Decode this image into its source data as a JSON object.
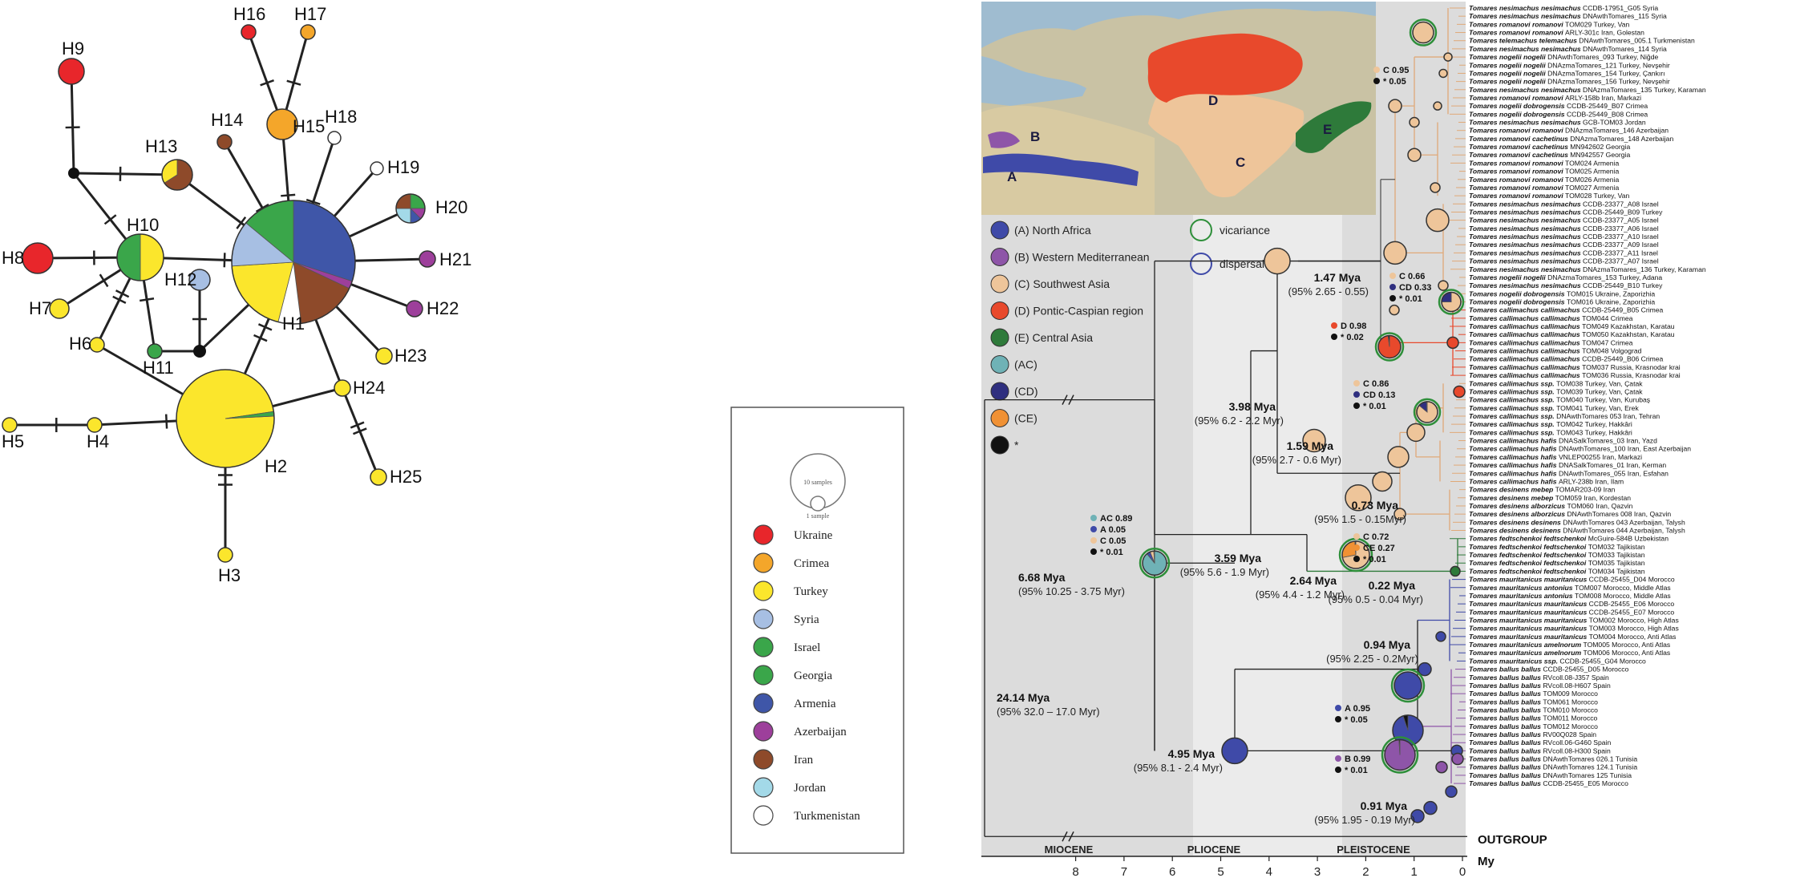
{
  "network": {
    "colors": {
      "Ukraine": "#e8262b",
      "Crimea": "#f4a62a",
      "Turkey": "#fbe62c",
      "Syria": "#a7bfe3",
      "Israel": "#3aa64a",
      "Georgia": "#3aa64a",
      "Armenia": "#3f56a8",
      "Azerbaijan": "#9d3f9b",
      "Iran": "#8e4a2a",
      "Jordan": "#a3d9e8",
      "Turkmenistan": "#ffffff"
    },
    "nodes": [
      {
        "id": "H1",
        "label": "H1",
        "slices": [
          [
            "Armenia",
            0.3
          ],
          [
            "Azerbaijan",
            0.02
          ],
          [
            "Iran",
            0.16
          ],
          [
            "Turkmenistan",
            0.06
          ],
          [
            "Turkey",
            0.2
          ],
          [
            "Syria",
            0.12
          ],
          [
            "Israel",
            0.14
          ]
        ]
      },
      {
        "id": "H2",
        "label": "H2",
        "slices": [
          [
            "Turkey",
            0.985
          ],
          [
            "Israel",
            0.015
          ]
        ]
      },
      {
        "id": "H3",
        "label": "H3",
        "slices": [
          [
            "Turkey",
            1
          ]
        ]
      },
      {
        "id": "H4",
        "label": "H4",
        "slices": [
          [
            "Turkey",
            1
          ]
        ]
      },
      {
        "id": "H5",
        "label": "H5",
        "slices": [
          [
            "Turkey",
            1
          ]
        ]
      },
      {
        "id": "H6",
        "label": "H6",
        "slices": [
          [
            "Turkey",
            1
          ]
        ]
      },
      {
        "id": "H7",
        "label": "H7",
        "slices": [
          [
            "Turkey",
            1
          ]
        ]
      },
      {
        "id": "H8",
        "label": "H8",
        "slices": [
          [
            "Ukraine",
            1
          ]
        ]
      },
      {
        "id": "H9",
        "label": "H9",
        "slices": [
          [
            "Ukraine",
            1
          ]
        ]
      },
      {
        "id": "H10",
        "label": "H10",
        "slices": [
          [
            "Turkey",
            0.5
          ],
          [
            "Israel",
            0.5
          ]
        ]
      },
      {
        "id": "H11",
        "label": "H11",
        "slices": [
          [
            "Israel",
            1
          ]
        ]
      },
      {
        "id": "H12",
        "label": "H12",
        "slices": [
          [
            "Syria",
            1
          ]
        ]
      },
      {
        "id": "H13",
        "label": "H13",
        "slices": [
          [
            "Iran",
            0.66
          ],
          [
            "Turkey",
            0.34
          ]
        ]
      },
      {
        "id": "H14",
        "label": "H14",
        "slices": [
          [
            "Iran",
            1
          ]
        ]
      },
      {
        "id": "H15",
        "label": "H15",
        "slices": [
          [
            "Crimea",
            1
          ]
        ]
      },
      {
        "id": "H16",
        "label": "H16",
        "slices": [
          [
            "Ukraine",
            1
          ]
        ]
      },
      {
        "id": "H17",
        "label": "H17",
        "slices": [
          [
            "Crimea",
            1
          ]
        ]
      },
      {
        "id": "H18",
        "label": "H18",
        "slices": [
          [
            "Turkmenistan",
            1
          ]
        ]
      },
      {
        "id": "H19",
        "label": "H19",
        "slices": [
          [
            "Turkmenistan",
            1
          ]
        ]
      },
      {
        "id": "H20",
        "label": "H20",
        "slices": [
          [
            "Israel",
            0.25
          ],
          [
            "Azerbaijan",
            0.125
          ],
          [
            "Armenia",
            0.125
          ],
          [
            "Jordan",
            0.25
          ],
          [
            "Iran",
            0.25
          ]
        ]
      },
      {
        "id": "H21",
        "label": "H21",
        "slices": [
          [
            "Azerbaijan",
            1
          ]
        ]
      },
      {
        "id": "H22",
        "label": "H22",
        "slices": [
          [
            "Azerbaijan",
            1
          ]
        ]
      },
      {
        "id": "H23",
        "label": "H23",
        "slices": [
          [
            "Turkey",
            1
          ]
        ]
      },
      {
        "id": "H24",
        "label": "H24",
        "slices": [
          [
            "Turkey",
            1
          ]
        ]
      },
      {
        "id": "H25",
        "label": "H25",
        "slices": [
          [
            "Turkey",
            1
          ]
        ]
      }
    ],
    "edges": [
      [
        "H1",
        "H2",
        2
      ],
      [
        "H2",
        "H3",
        2
      ],
      [
        "H2",
        "H4",
        1
      ],
      [
        "H4",
        "H5",
        1
      ],
      [
        "H2",
        "H6",
        0
      ],
      [
        "H1",
        "v3",
        1
      ],
      [
        "v3",
        "H11",
        0
      ],
      [
        "v3",
        "H12",
        1
      ],
      [
        "H10",
        "H11",
        1
      ],
      [
        "H10",
        "H6",
        2
      ],
      [
        "H10",
        "H7",
        1
      ],
      [
        "H10",
        "H8",
        1
      ],
      [
        "H10",
        "v1",
        1
      ],
      [
        "v1",
        "H9",
        1
      ],
      [
        "v1",
        "H13",
        1
      ],
      [
        "H1",
        "H10",
        1
      ],
      [
        "H1",
        "H13",
        1
      ],
      [
        "H1",
        "H14",
        1
      ],
      [
        "H1",
        "H15",
        2
      ],
      [
        "H15",
        "H16",
        1
      ],
      [
        "H15",
        "H17",
        1
      ],
      [
        "H1",
        "H18",
        2
      ],
      [
        "H1",
        "H19",
        1
      ],
      [
        "H1",
        "H20",
        1
      ],
      [
        "H1",
        "H21",
        1
      ],
      [
        "H1",
        "H22",
        1
      ],
      [
        "H1",
        "H23",
        1
      ],
      [
        "H1",
        "H24",
        1
      ],
      [
        "H24",
        "H25",
        2
      ],
      [
        "H24",
        "H2",
        0
      ]
    ],
    "legend_title_top": "10 samples",
    "legend_title_bottom": "1 sample",
    "legend_items": [
      "Ukraine",
      "Crimea",
      "Turkey",
      "Syria",
      "Israel",
      "Georgia",
      "Armenia",
      "Azerbaijan",
      "Iran",
      "Jordan",
      "Turkmenistan"
    ]
  },
  "map": {
    "regions": [
      "A",
      "B",
      "C",
      "D",
      "E"
    ]
  },
  "area_legend": [
    {
      "key": "A",
      "label": "(A) North Africa",
      "color": "#3f4aa8"
    },
    {
      "key": "B",
      "label": "(B) Western Mediterranean",
      "color": "#8e55a8"
    },
    {
      "key": "C",
      "label": "(C) Southwest Asia",
      "color": "#eec59a"
    },
    {
      "key": "D",
      "label": "(D) Pontic-Caspian region",
      "color": "#e8492c"
    },
    {
      "key": "E",
      "label": "(E) Central Asia",
      "color": "#2e7a3a"
    },
    {
      "key": "AC",
      "label": "(AC)",
      "color": "#6fb2b6"
    },
    {
      "key": "CD",
      "label": "(CD)",
      "color": "#2f2f7f"
    },
    {
      "key": "CE",
      "label": "(CE)",
      "color": "#f09134"
    },
    {
      "key": "star",
      "label": "*",
      "color": "#111111"
    }
  ],
  "event_legend": [
    {
      "label": "vicariance",
      "color": "#2e8f3a"
    },
    {
      "label": "dispersal",
      "color": "#3f4aa8"
    }
  ],
  "tree": {
    "taxa": [
      "Tomares nesimachus nesimachus  CCDB-17951_G05 Syria",
      "Tomares nesimachus nesimachus  DNAwthTomares_115 Syria",
      "Tomares romanovi romanovi  TOM029 Turkey, Van",
      "Tomares romanovi romanovi  ARLY-301c Iran, Golestan",
      "Tomares telemachus telemachus  DNAwthTomares_005.1 Turkmenistan",
      "Tomares nesimachus nesimachus  DNAwthTomares_114 Syria",
      "Tomares nogelii nogelii  DNAwthTomares_093 Turkey, Niğde",
      "Tomares nogelii nogelii  DNAzmaTomares_121 Turkey, Nevşehir",
      "Tomares nogelii nogelii  DNAzmaTomares_154 Turkey, Çankırı",
      "Tomares nogelii nogelii  DNAzmaTomares_156 Turkey, Nevşehir",
      "Tomares nesimachus nesimachus  DNAzmaTomares_135 Turkey, Karaman",
      "Tomares romanovi romanovi  ARLY-158b Iran, Markazi",
      "Tomares nogelii dobrogensis  CCDB-25449_B07 Crimea",
      "Tomares nogelii dobrogensis  CCDB-25449_B08 Crimea",
      "Tomares nesimachus nesimachus  GCB-TOM03 Jordan",
      "Tomares romanovi romanovi  DNAzmaTomares_146 Azerbaijan",
      "Tomares romanovi cachetinus  DNAzmaTomares_148 Azerbaijan",
      "Tomares romanovi cachetinus  MN942602 Georgia",
      "Tomares romanovi cachetinus  MN942557 Georgia",
      "Tomares romanovi romanovi  TOM024 Armenia",
      "Tomares romanovi romanovi  TOM025 Armenia",
      "Tomares romanovi romanovi  TOM026 Armenia",
      "Tomares romanovi romanovi  TOM027 Armenia",
      "Tomares romanovi romanovi  TOM028 Turkey, Van",
      "Tomares nesimachus nesimachus  CCDB-23377_A08 Israel",
      "Tomares nesimachus nesimachus  CCDB-25449_B09 Turkey",
      "Tomares nesimachus nesimachus  CCDB-23377_A05 Israel",
      "Tomares nesimachus nesimachus  CCDB-23377_A06 Israel",
      "Tomares nesimachus nesimachus  CCDB-23377_A10 Israel",
      "Tomares nesimachus nesimachus  CCDB-23377_A09 Israel",
      "Tomares nesimachus nesimachus  CCDB-23377_A11 Israel",
      "Tomares nesimachus nesimachus  CCDB-23377_A07 Israel",
      "Tomares nesimachus nesimachus  DNAzmaTomares_136 Turkey, Karaman",
      "Tomares nogelii nogelii  DNAzmaTomares_153 Turkey, Adana",
      "Tomares nesimachus nesimachus  CCDB-25449_B10 Turkey",
      "Tomares nogelii dobrogensis  TOM015 Ukraine, Zaporizhia",
      "Tomares nogelii dobrogensis  TOM016 Ukraine, Zaporizhia",
      "Tomares callimachus callimachus  CCDB-25449_B05 Crimea",
      "Tomares callimachus callimachus  TOM044 Crimea",
      "Tomares callimachus callimachus  TOM049 Kazakhstan, Karatau",
      "Tomares callimachus callimachus  TOM050 Kazakhstan, Karatau",
      "Tomares callimachus callimachus  TOM047 Crimea",
      "Tomares callimachus callimachus  TOM048 Volgograd",
      "Tomares callimachus callimachus  CCDB-25449_B06 Crimea",
      "Tomares callimachus callimachus  TOM037 Russia, Krasnodar krai",
      "Tomares callimachus callimachus  TOM036 Russia, Krasnodar krai",
      "Tomares callimachus ssp.  TOM038 Turkey, Van, Çatak",
      "Tomares callimachus ssp.  TOM039 Turkey, Van, Çatak",
      "Tomares callimachus ssp.  TOM040 Turkey, Van, Kurubaş",
      "Tomares callimachus ssp.  TOM041 Turkey, Van, Erek",
      "Tomares callimachus ssp.  DNAwthTomares 053 Iran, Tehran",
      "Tomares callimachus ssp.  TOM042 Turkey, Hakkâri",
      "Tomares callimachus ssp.  TOM043 Turkey, Hakkâri",
      "Tomares callimachus hafis  DNASalkTomares_03 Iran, Yazd",
      "Tomares callimachus hafis  DNAwthTomares_100 Iran, East Azerbaijan",
      "Tomares callimachus hafis  VNLEP00255 Iran, Markazi",
      "Tomares callimachus hafis  DNASalkTomares_01 Iran, Kerman",
      "Tomares callimachus hafis  DNAwthTomares_055 Iran, Esfahan",
      "Tomares callimachus hafis  ARLY-238b Iran, Ilam",
      "Tomares desinens mebep  TOMAR203-09 Iran",
      "Tomares desinens mebep  TOM059 Iran, Kordestan",
      "Tomares desinens alborzicus  TOM060 Iran, Qazvin",
      "Tomares desinens alborzicus  DNAwthTomares 008 Iran, Qazvin",
      "Tomares desinens desinens  DNAwthTomares 043 Azerbaijan, Talysh",
      "Tomares desinens desinens  DNAwthTomares 044 Azerbaijan, Talysh",
      "Tomares fedtschenkoi fedtschenkoi  McGuire-584B Uzbekistan",
      "Tomares fedtschenkoi fedtschenkoi  TOM032 Tajikistan",
      "Tomares fedtschenkoi fedtschenkoi  TOM033 Tajikistan",
      "Tomares fedtschenkoi fedtschenkoi  TOM035 Tajikistan",
      "Tomares fedtschenkoi fedtschenkoi  TOM034 Tajikistan",
      "Tomares mauritanicus mauritanicus  CCDB-25455_D04 Morocco",
      "Tomares mauritanicus antonius  TOM007 Morocco, Middle Atlas",
      "Tomares mauritanicus antonius  TOM008 Morocco, Middle Atlas",
      "Tomares mauritanicus mauritanicus  CCDB-25455_E06 Morocco",
      "Tomares mauritanicus mauritanicus  CCDB-25455_E07 Morocco",
      "Tomares mauritanicus mauritanicus  TOM002 Morocco, High Atlas",
      "Tomares mauritanicus mauritanicus  TOM003 Morocco, High Atlas",
      "Tomares mauritanicus mauritanicus  TOM004 Morocco, Anti Atlas",
      "Tomares mauritanicus amelnorum  TOM005 Morocco, Anti Atlas",
      "Tomares mauritanicus amelnorum  TOM006 Morocco, Anti Atlas",
      "Tomares mauritanicus ssp.  CCDB-25455_G04 Morocco",
      "Tomares ballus ballus  CCDB-25455_D05 Morocco",
      "Tomares ballus ballus  RVcoll.08-J357 Spain",
      "Tomares ballus ballus  RVcoll.08-H607 Spain",
      "Tomares ballus ballus  TOM009 Morocco",
      "Tomares ballus ballus  TOM061 Morocco",
      "Tomares ballus ballus  TOM010 Morocco",
      "Tomares ballus ballus  TOM011 Morocco",
      "Tomares ballus ballus  TOM012 Morocco",
      "Tomares ballus ballus  RV00Q028 Spain",
      "Tomares ballus ballus  RVcoll.06-G460 Spain",
      "Tomares ballus ballus  RVcoll.08-H300 Spain",
      "Tomares ballus ballus  DNAwthTomares 026.1 Tunisia",
      "Tomares ballus ballus  DNAwthTomares 124.1 Tunisia",
      "Tomares ballus ballus  DNAwthTomares 125 Tunisia",
      "Tomares ballus ballus  CCDB-25455_E05 Morocco"
    ],
    "outgroup": "OUTGROUP",
    "axis_unit": "My",
    "axis_ticks": [
      "8",
      "7",
      "6",
      "5",
      "4",
      "3",
      "2",
      "1",
      "0"
    ],
    "epochs": [
      "MIOCENE",
      "PLIOCENE",
      "PLEISTOCENE"
    ],
    "node_labels": [
      {
        "age": "24.14 Mya",
        "ci": "(95% 32.0 – 17.0 Myr)"
      },
      {
        "age": "6.68 Mya",
        "ci": "(95% 10.25 - 3.75 Myr)"
      },
      {
        "age": "3.98 Mya",
        "ci": "(95% 6.2 - 2.2 Myr)"
      },
      {
        "age": "3.59 Mya",
        "ci": "(95% 5.6 - 1.9 Myr)"
      },
      {
        "age": "1.47 Mya",
        "ci": "(95% 2.65 - 0.55)"
      },
      {
        "age": "1.59 Mya",
        "ci": "(95% 2.7 - 0.6 Myr)"
      },
      {
        "age": "0.73 Mya",
        "ci": "(95% 1.5 - 0.15Myr)"
      },
      {
        "age": "2.64 Mya",
        "ci": "(95% 4.4 - 1.2 Myr)"
      },
      {
        "age": "0.22 Mya",
        "ci": "(95% 0.5 - 0.04 Myr)"
      },
      {
        "age": "0.94 Mya",
        "ci": "(95% 2.25 - 0.2Myr)"
      },
      {
        "age": "4.95 Mya",
        "ci": "(95% 8.1 - 2.4 Myr)"
      },
      {
        "age": "0.91 Mya",
        "ci": "(95% 1.95 - 0.19 Myr)"
      }
    ],
    "probabilities": [
      {
        "lines": [
          [
            "C",
            "0.95",
            "#eec59a"
          ],
          [
            "*",
            "0.05",
            "#111111"
          ]
        ]
      },
      {
        "lines": [
          [
            "C",
            "0.66",
            "#eec59a"
          ],
          [
            "CD",
            "0.33",
            "#2f2f7f"
          ],
          [
            "*",
            "0.01",
            "#111111"
          ]
        ]
      },
      {
        "lines": [
          [
            "D",
            "0.98",
            "#e8492c"
          ],
          [
            "*",
            "0.02",
            "#111111"
          ]
        ]
      },
      {
        "lines": [
          [
            "C",
            "0.86",
            "#eec59a"
          ],
          [
            "CD",
            "0.13",
            "#2f2f7f"
          ],
          [
            "*",
            "0.01",
            "#111111"
          ]
        ]
      },
      {
        "lines": [
          [
            "AC",
            "0.89",
            "#6fb2b6"
          ],
          [
            "A",
            "0.05",
            "#3f4aa8"
          ],
          [
            "C",
            "0.05",
            "#eec59a"
          ],
          [
            "*",
            "0.01",
            "#111111"
          ]
        ]
      },
      {
        "lines": [
          [
            "C",
            "0.72",
            "#eec59a"
          ],
          [
            "CE",
            "0.27",
            "#f09134"
          ],
          [
            "*",
            "0.01",
            "#111111"
          ]
        ]
      },
      {
        "lines": [
          [
            "A",
            "0.95",
            "#3f4aa8"
          ],
          [
            "*",
            "0.05",
            "#111111"
          ]
        ]
      },
      {
        "lines": [
          [
            "B",
            "0.99",
            "#8e55a8"
          ],
          [
            "*",
            "0.01",
            "#111111"
          ]
        ]
      }
    ]
  }
}
